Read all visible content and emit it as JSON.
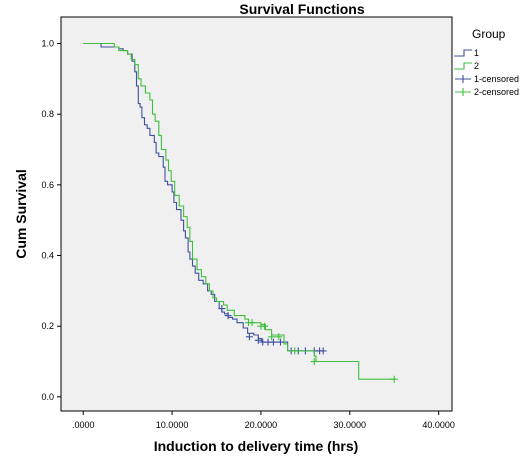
{
  "chart_data": {
    "type": "line",
    "title": "Survival Functions",
    "xlabel": "Induction to delivery time (hrs)",
    "ylabel": "Cum Survival",
    "xlim": [
      -2.5,
      41.5
    ],
    "ylim": [
      -0.04,
      1.075
    ],
    "x_ticks": [
      0,
      10,
      20,
      30,
      40
    ],
    "x_tick_labels": [
      ".0000",
      "10.0000",
      "20.0000",
      "30.0000",
      "40.0000"
    ],
    "y_ticks": [
      0,
      0.2,
      0.4,
      0.6,
      0.8,
      1.0
    ],
    "y_tick_labels": [
      "0.0",
      "0.2",
      "0.4",
      "0.6",
      "0.8",
      "1.0"
    ],
    "grid": false,
    "legend": {
      "title": "Group",
      "placement": "right",
      "entries": [
        {
          "label": "1",
          "marker": "step",
          "color": "#3f4fa1"
        },
        {
          "label": "2",
          "marker": "step",
          "color": "#3fbf3f"
        },
        {
          "label": "1-censored",
          "marker": "plus",
          "color": "#3f4fa1"
        },
        {
          "label": "2-censored",
          "marker": "plus",
          "color": "#3fbf3f"
        }
      ]
    },
    "series": [
      {
        "name": "1",
        "color": "#3f4fa1",
        "steps": [
          [
            0,
            1.0
          ],
          [
            1.5,
            1.0
          ],
          [
            2.0,
            0.99
          ],
          [
            3.0,
            0.99
          ],
          [
            4.0,
            0.985
          ],
          [
            4.5,
            0.98
          ],
          [
            5.0,
            0.97
          ],
          [
            5.5,
            0.95
          ],
          [
            5.8,
            0.92
          ],
          [
            6.0,
            0.88
          ],
          [
            6.2,
            0.83
          ],
          [
            6.4,
            0.82
          ],
          [
            6.6,
            0.79
          ],
          [
            6.9,
            0.77
          ],
          [
            7.2,
            0.76
          ],
          [
            7.5,
            0.74
          ],
          [
            8.0,
            0.72
          ],
          [
            8.2,
            0.69
          ],
          [
            8.5,
            0.68
          ],
          [
            9.0,
            0.65
          ],
          [
            9.2,
            0.61
          ],
          [
            9.5,
            0.6
          ],
          [
            10.0,
            0.58
          ],
          [
            10.2,
            0.55
          ],
          [
            10.5,
            0.53
          ],
          [
            11.0,
            0.5
          ],
          [
            11.3,
            0.47
          ],
          [
            11.5,
            0.45
          ],
          [
            11.8,
            0.41
          ],
          [
            12.0,
            0.39
          ],
          [
            12.3,
            0.37
          ],
          [
            12.6,
            0.35
          ],
          [
            13.0,
            0.33
          ],
          [
            13.5,
            0.32
          ],
          [
            14.0,
            0.3
          ],
          [
            14.4,
            0.29
          ],
          [
            14.8,
            0.27
          ],
          [
            15.3,
            0.25
          ],
          [
            15.6,
            0.24
          ],
          [
            15.9,
            0.235
          ],
          [
            16.3,
            0.225
          ],
          [
            16.8,
            0.22
          ],
          [
            17.3,
            0.21
          ],
          [
            18.0,
            0.195
          ],
          [
            18.5,
            0.18
          ],
          [
            19.2,
            0.175
          ],
          [
            19.7,
            0.165
          ],
          [
            20.1,
            0.155
          ],
          [
            22.8,
            0.155
          ],
          [
            23.0,
            0.13
          ],
          [
            27.0,
            0.13
          ]
        ],
        "censored": [
          [
            15.6,
            0.25
          ],
          [
            16.3,
            0.23
          ],
          [
            18.7,
            0.17
          ],
          [
            19.7,
            0.16
          ],
          [
            20.2,
            0.155
          ],
          [
            20.8,
            0.155
          ],
          [
            21.4,
            0.155
          ],
          [
            22.2,
            0.155
          ],
          [
            23.4,
            0.13
          ],
          [
            24.2,
            0.13
          ],
          [
            25.0,
            0.13
          ],
          [
            26.0,
            0.13
          ],
          [
            26.6,
            0.13
          ],
          [
            27.0,
            0.13
          ]
        ]
      },
      {
        "name": "2",
        "color": "#3fbf3f",
        "steps": [
          [
            0,
            1.0
          ],
          [
            2.0,
            1.0
          ],
          [
            3.5,
            0.99
          ],
          [
            4.0,
            0.98
          ],
          [
            5.0,
            0.97
          ],
          [
            5.4,
            0.955
          ],
          [
            5.8,
            0.94
          ],
          [
            6.2,
            0.9
          ],
          [
            6.5,
            0.88
          ],
          [
            7.0,
            0.86
          ],
          [
            7.5,
            0.84
          ],
          [
            7.8,
            0.8
          ],
          [
            8.1,
            0.78
          ],
          [
            8.5,
            0.74
          ],
          [
            8.8,
            0.7
          ],
          [
            9.3,
            0.67
          ],
          [
            9.6,
            0.64
          ],
          [
            9.9,
            0.61
          ],
          [
            10.3,
            0.57
          ],
          [
            10.8,
            0.54
          ],
          [
            11.3,
            0.51
          ],
          [
            11.7,
            0.48
          ],
          [
            12.0,
            0.44
          ],
          [
            12.3,
            0.39
          ],
          [
            12.8,
            0.36
          ],
          [
            13.3,
            0.34
          ],
          [
            13.8,
            0.32
          ],
          [
            14.2,
            0.3
          ],
          [
            14.6,
            0.28
          ],
          [
            15.0,
            0.27
          ],
          [
            15.8,
            0.26
          ],
          [
            16.2,
            0.245
          ],
          [
            17.0,
            0.23
          ],
          [
            18.2,
            0.22
          ],
          [
            18.6,
            0.21
          ],
          [
            20.0,
            0.205
          ],
          [
            20.5,
            0.19
          ],
          [
            21.2,
            0.175
          ],
          [
            22.6,
            0.15
          ],
          [
            23.0,
            0.13
          ],
          [
            25.8,
            0.13
          ],
          [
            26.0,
            0.115
          ],
          [
            26.2,
            0.1
          ],
          [
            31.0,
            0.1
          ],
          [
            31.0,
            0.05
          ],
          [
            35.0,
            0.05
          ]
        ],
        "censored": [
          [
            18.6,
            0.21
          ],
          [
            19.0,
            0.21
          ],
          [
            20.0,
            0.2
          ],
          [
            20.4,
            0.2
          ],
          [
            21.2,
            0.17
          ],
          [
            22.0,
            0.17
          ],
          [
            23.8,
            0.13
          ],
          [
            26.0,
            0.1
          ],
          [
            35.0,
            0.05
          ]
        ]
      }
    ]
  }
}
